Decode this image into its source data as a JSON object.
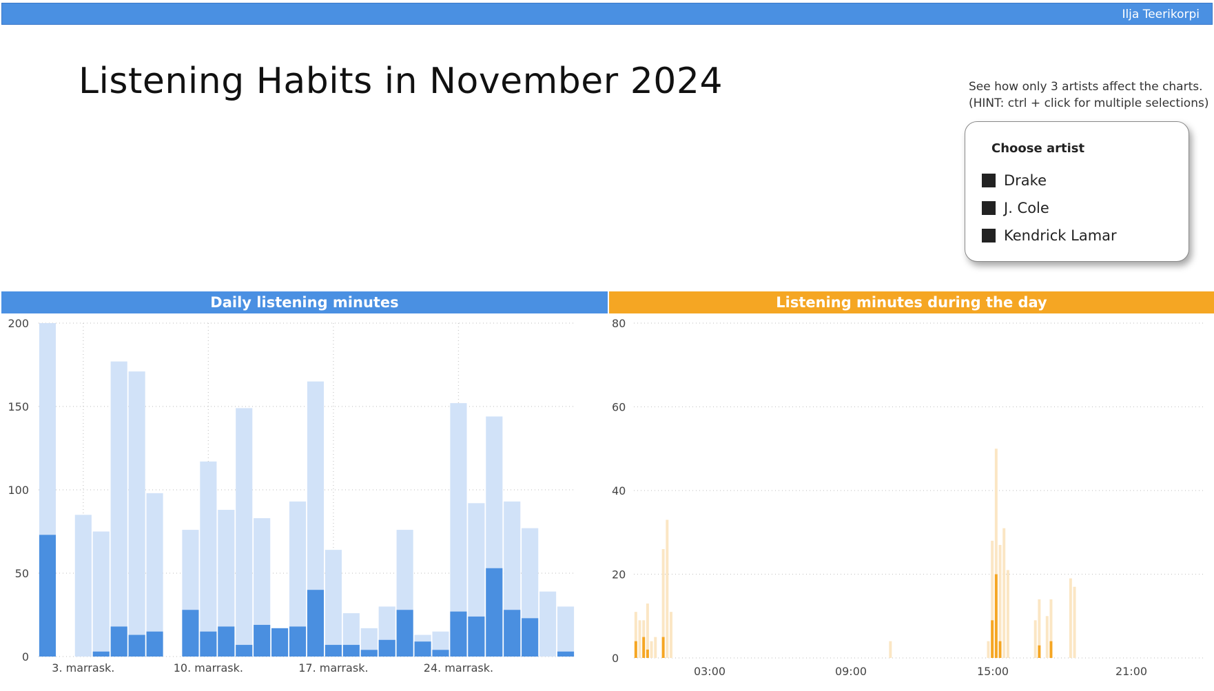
{
  "header": {
    "user": "Ilja Teerikorpi"
  },
  "page": {
    "title": "Listening Habits in November 2024"
  },
  "hint": {
    "line1": "See how only 3 artists affect the charts.",
    "line2": "(HINT: ctrl + click for multiple selections)"
  },
  "slicer": {
    "title": "Choose artist",
    "items": [
      {
        "label": "Drake"
      },
      {
        "label": "J. Cole"
      },
      {
        "label": "Kendrick Lamar"
      }
    ]
  },
  "colors": {
    "blue_dark": "#4a8fe0",
    "blue_light": "#d1e2f8",
    "orange_dark": "#f5a623",
    "orange_light": "#fbe6c4"
  },
  "chart_data": [
    {
      "type": "bar",
      "title": "Daily listening minutes",
      "xlabel": "",
      "ylabel": "",
      "ylim": [
        0,
        200
      ],
      "yticks": [
        0,
        50,
        100,
        150,
        200
      ],
      "xtick_labels": [
        {
          "day": 3,
          "label": "3. marrask."
        },
        {
          "day": 10,
          "label": "10. marrask."
        },
        {
          "day": 17,
          "label": "17. marrask."
        },
        {
          "day": 24,
          "label": "24. marrask."
        }
      ],
      "days": [
        1,
        2,
        3,
        4,
        5,
        6,
        7,
        8,
        9,
        10,
        11,
        12,
        13,
        14,
        15,
        16,
        17,
        18,
        19,
        20,
        21,
        22,
        23,
        24,
        25,
        26,
        27,
        28,
        29,
        30
      ],
      "series": [
        {
          "values": [
            200,
            0,
            85,
            75,
            177,
            171,
            98,
            0,
            76,
            117,
            88,
            149,
            83,
            17,
            93,
            165,
            64,
            26,
            17,
            30,
            76,
            13,
            15,
            152,
            92,
            144,
            93,
            77,
            39,
            30
          ]
        },
        {
          "values": [
            73,
            0,
            0,
            3,
            18,
            13,
            15,
            0,
            28,
            15,
            18,
            7,
            19,
            17,
            18,
            40,
            7,
            7,
            4,
            10,
            28,
            9,
            4,
            27,
            24,
            53,
            28,
            23,
            0,
            3
          ]
        }
      ]
    },
    {
      "type": "bar",
      "title": "Listening minutes during the day",
      "xlabel": "",
      "ylabel": "",
      "ylim": [
        0,
        80
      ],
      "yticks": [
        0,
        20,
        40,
        60,
        80
      ],
      "xtick_labels": [
        "03:00",
        "09:00",
        "15:00",
        "21:00"
      ],
      "series": [
        {
          "values": [
            11,
            9,
            9,
            13,
            4,
            5,
            0,
            26,
            33,
            11,
            0,
            0,
            0,
            0,
            0,
            0,
            0,
            0,
            0,
            0,
            0,
            0,
            0,
            0,
            0,
            0,
            0,
            0,
            0,
            0,
            0,
            0,
            0,
            0,
            0,
            0,
            0,
            0,
            0,
            0,
            0,
            0,
            0,
            0,
            0,
            0,
            0,
            0,
            0,
            0,
            0,
            0,
            0,
            0,
            0,
            0,
            0,
            0,
            0,
            0,
            0,
            0,
            0,
            0,
            0,
            4,
            0,
            0,
            0,
            0,
            0,
            0,
            0,
            0,
            0,
            0,
            0,
            0,
            0,
            0,
            0,
            0,
            0,
            0,
            0,
            0,
            0,
            0,
            0,
            0,
            4,
            28,
            50,
            27,
            31,
            21,
            0,
            0,
            0,
            0,
            0,
            0,
            9,
            14,
            0,
            10,
            14,
            0,
            0,
            0,
            0,
            19,
            17,
            0,
            0,
            0,
            0,
            0,
            0,
            0,
            0,
            0,
            0,
            0,
            0,
            0,
            0,
            0,
            0,
            0,
            0,
            0,
            0,
            0,
            0,
            0,
            0,
            0,
            0,
            0,
            0,
            0,
            0,
            0,
            0,
            0
          ]
        },
        {
          "values": [
            4,
            0,
            5,
            2,
            0,
            0,
            0,
            5,
            0,
            0,
            0,
            0,
            0,
            0,
            0,
            0,
            0,
            0,
            0,
            0,
            0,
            0,
            0,
            0,
            0,
            0,
            0,
            0,
            0,
            0,
            0,
            0,
            0,
            0,
            0,
            0,
            0,
            0,
            0,
            0,
            0,
            0,
            0,
            0,
            0,
            0,
            0,
            0,
            0,
            0,
            0,
            0,
            0,
            0,
            0,
            0,
            0,
            0,
            0,
            0,
            0,
            0,
            0,
            0,
            0,
            0,
            0,
            0,
            0,
            0,
            0,
            0,
            0,
            0,
            0,
            0,
            0,
            0,
            0,
            0,
            0,
            0,
            0,
            0,
            0,
            0,
            0,
            0,
            0,
            0,
            0,
            9,
            20,
            4,
            0,
            0,
            0,
            0,
            0,
            0,
            0,
            0,
            0,
            3,
            0,
            0,
            4,
            0,
            0,
            0,
            0,
            0,
            0,
            0,
            0,
            0,
            0,
            0,
            0,
            0,
            0,
            0,
            0,
            0,
            0,
            0,
            0,
            0,
            0,
            0,
            0,
            0,
            0,
            0,
            0,
            0,
            0,
            0,
            0,
            0,
            0,
            0,
            0,
            0,
            0,
            0
          ]
        }
      ]
    }
  ]
}
